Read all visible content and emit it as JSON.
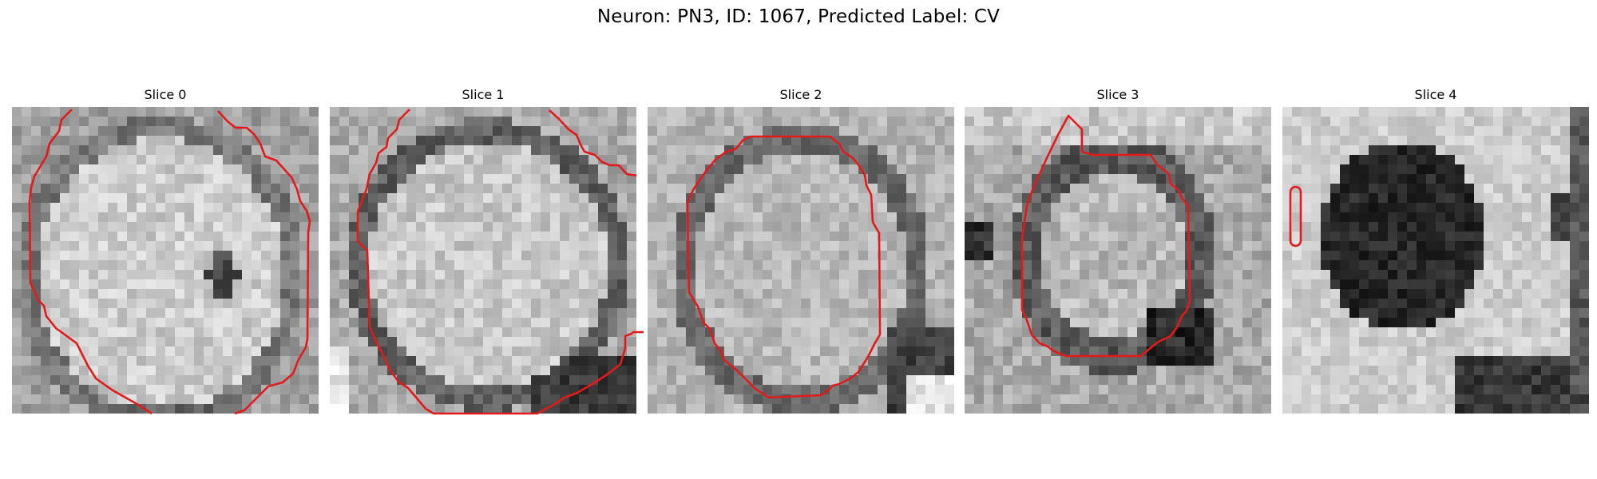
{
  "figure": {
    "title": "Neuron: PN3, ID: 1067, Predicted Label: CV",
    "contour_color": "#e31a1c"
  },
  "panels": [
    {
      "title": "Slice 0"
    },
    {
      "title": "Slice 1"
    },
    {
      "title": "Slice 2"
    },
    {
      "title": "Slice 3"
    },
    {
      "title": "Slice 4"
    }
  ]
}
